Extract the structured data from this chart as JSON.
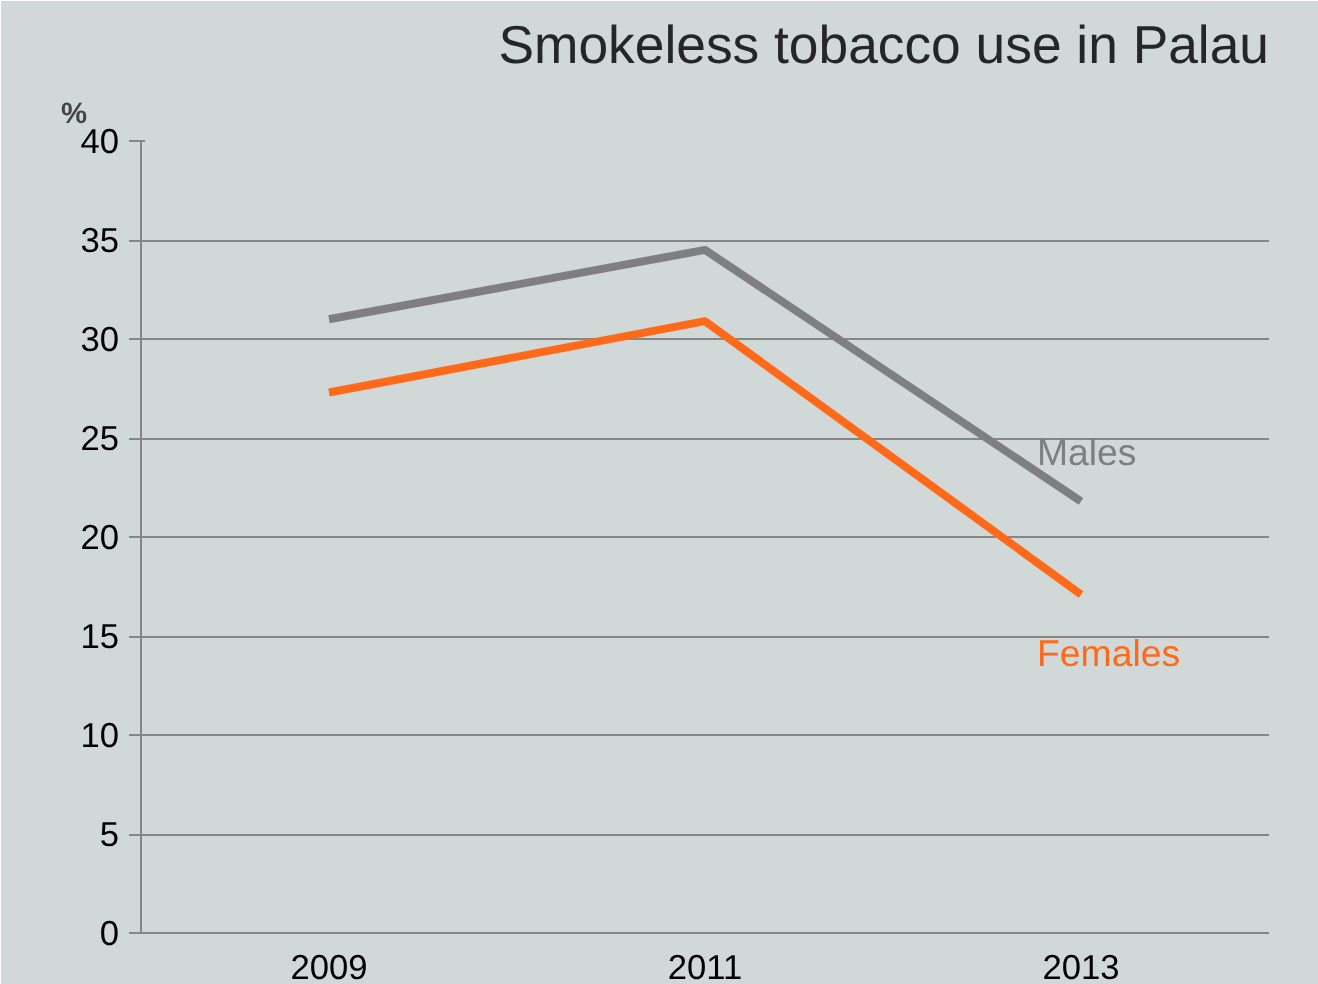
{
  "chart_data": {
    "type": "line",
    "title": "Smokeless tobacco use in Palau",
    "ylabel": "%",
    "categories": [
      "2009",
      "2011",
      "2013"
    ],
    "series": [
      {
        "name": "Males",
        "color": "#7f7f7f",
        "values": [
          31.0,
          34.5,
          21.8
        ]
      },
      {
        "name": "Females",
        "color": "#ff6a1a",
        "values": [
          27.3,
          30.9,
          17.1
        ]
      }
    ],
    "ylim": [
      0,
      40
    ],
    "yticks": [
      0,
      5,
      10,
      15,
      20,
      25,
      30,
      35,
      40
    ],
    "grid": "y"
  }
}
